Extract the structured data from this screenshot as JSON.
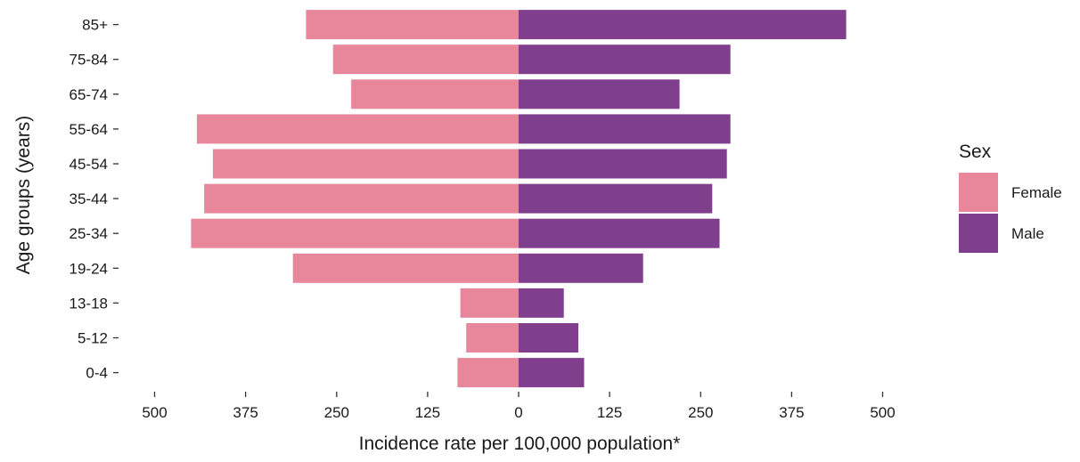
{
  "chart_data": {
    "type": "bar",
    "orientation": "horizontal",
    "layout": "population-pyramid",
    "title": "",
    "xlabel": "Incidence rate per 100,000 population*",
    "ylabel": "Age groups (years)",
    "categories": [
      "0-4",
      "5-12",
      "13-18",
      "19-24",
      "25-34",
      "35-44",
      "45-54",
      "55-64",
      "65-74",
      "75-84",
      "85+"
    ],
    "series": [
      {
        "name": "Female",
        "color": "#e8879c",
        "direction": "left",
        "values": [
          84,
          72,
          80,
          310,
          450,
          432,
          420,
          442,
          230,
          255,
          292
        ]
      },
      {
        "name": "Male",
        "color": "#7f3f8d",
        "direction": "right",
        "values": [
          90,
          82,
          62,
          171,
          276,
          266,
          286,
          291,
          221,
          291,
          450
        ]
      }
    ],
    "xlim": [
      -500,
      500
    ],
    "x_ticks": [
      -500,
      -375,
      -250,
      -125,
      0,
      125,
      250,
      375,
      500
    ],
    "x_tick_labels": [
      "500",
      "375",
      "250",
      "125",
      "0",
      "125",
      "250",
      "375",
      "500"
    ],
    "grid": false,
    "legend": {
      "title": "Sex",
      "position": "right",
      "items": [
        {
          "label": "Female",
          "color": "#e8879c"
        },
        {
          "label": "Male",
          "color": "#7f3f8d"
        }
      ]
    }
  }
}
